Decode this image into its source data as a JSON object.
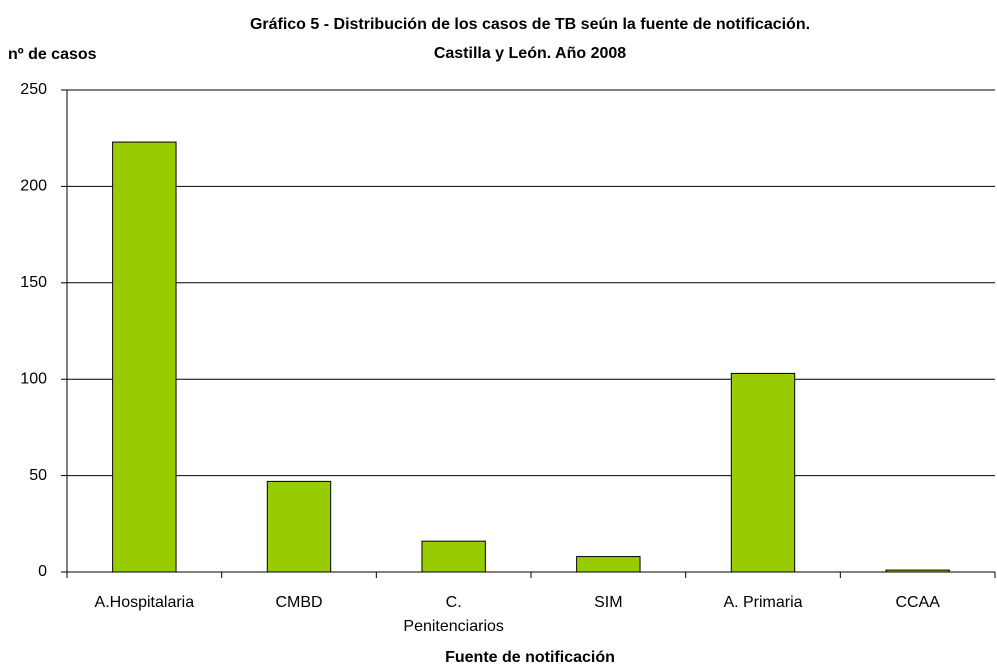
{
  "chart_data": {
    "type": "bar",
    "title": [
      "Gráfico 5 - Distribución de los casos de TB seún la fuente de notificación.",
      "Castilla y León. Año 2008"
    ],
    "y_label": "nº de casos",
    "x_label": "Fuente de notificación",
    "categories": [
      "A.Hospitalaria",
      "CMBD",
      "C. Penitenciarios",
      "SIM",
      "A. Primaria",
      "CCAA"
    ],
    "values": [
      223,
      47,
      16,
      8,
      103,
      1
    ],
    "color": "#99cc00",
    "ylim": [
      0,
      250
    ],
    "yticks": [
      0,
      50,
      100,
      150,
      200,
      250
    ],
    "grid": true
  }
}
